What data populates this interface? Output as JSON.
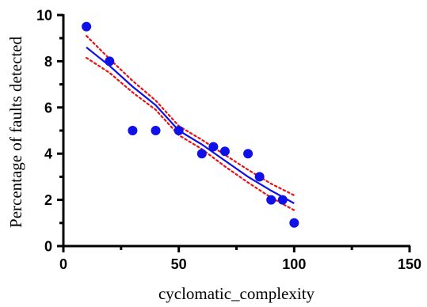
{
  "chart_data": {
    "type": "scatter",
    "title": "",
    "xlabel": "cyclomatic_complexity",
    "ylabel": "Percentage of faults detected",
    "xlim": [
      0,
      150
    ],
    "ylim": [
      0,
      10
    ],
    "x_ticks": [
      0,
      50,
      100,
      150
    ],
    "y_ticks": [
      0,
      2,
      4,
      6,
      8,
      10
    ],
    "grid": false,
    "legend": "none",
    "colors": {
      "points": "#1010e8",
      "fit": "#1010e8",
      "ci": "#e81010",
      "axis": "#000000"
    },
    "points": [
      {
        "x": 10,
        "y": 9.5
      },
      {
        "x": 20,
        "y": 8.0
      },
      {
        "x": 30,
        "y": 5.0
      },
      {
        "x": 40,
        "y": 5.0
      },
      {
        "x": 50,
        "y": 5.0
      },
      {
        "x": 60,
        "y": 4.0
      },
      {
        "x": 65,
        "y": 4.3
      },
      {
        "x": 70,
        "y": 4.1
      },
      {
        "x": 80,
        "y": 4.0
      },
      {
        "x": 85,
        "y": 3.0
      },
      {
        "x": 90,
        "y": 2.0
      },
      {
        "x": 95,
        "y": 2.0
      },
      {
        "x": 100,
        "y": 1.0
      }
    ],
    "fit_line": [
      {
        "x": 10,
        "y": 8.6
      },
      {
        "x": 20,
        "y": 7.8
      },
      {
        "x": 30,
        "y": 6.9
      },
      {
        "x": 40,
        "y": 6.1
      },
      {
        "x": 50,
        "y": 5.0
      },
      {
        "x": 60,
        "y": 4.4
      },
      {
        "x": 70,
        "y": 3.7
      },
      {
        "x": 80,
        "y": 3.0
      },
      {
        "x": 90,
        "y": 2.4
      },
      {
        "x": 100,
        "y": 1.85
      }
    ],
    "ci_upper": [
      {
        "x": 10,
        "y": 9.1
      },
      {
        "x": 20,
        "y": 8.1
      },
      {
        "x": 30,
        "y": 7.15
      },
      {
        "x": 40,
        "y": 6.3
      },
      {
        "x": 50,
        "y": 5.2
      },
      {
        "x": 60,
        "y": 4.6
      },
      {
        "x": 70,
        "y": 3.95
      },
      {
        "x": 80,
        "y": 3.3
      },
      {
        "x": 90,
        "y": 2.7
      },
      {
        "x": 100,
        "y": 2.2
      }
    ],
    "ci_lower": [
      {
        "x": 10,
        "y": 8.15
      },
      {
        "x": 20,
        "y": 7.5
      },
      {
        "x": 30,
        "y": 6.65
      },
      {
        "x": 40,
        "y": 5.9
      },
      {
        "x": 50,
        "y": 4.8
      },
      {
        "x": 60,
        "y": 4.2
      },
      {
        "x": 70,
        "y": 3.45
      },
      {
        "x": 80,
        "y": 2.75
      },
      {
        "x": 90,
        "y": 2.1
      },
      {
        "x": 100,
        "y": 1.55
      }
    ]
  }
}
